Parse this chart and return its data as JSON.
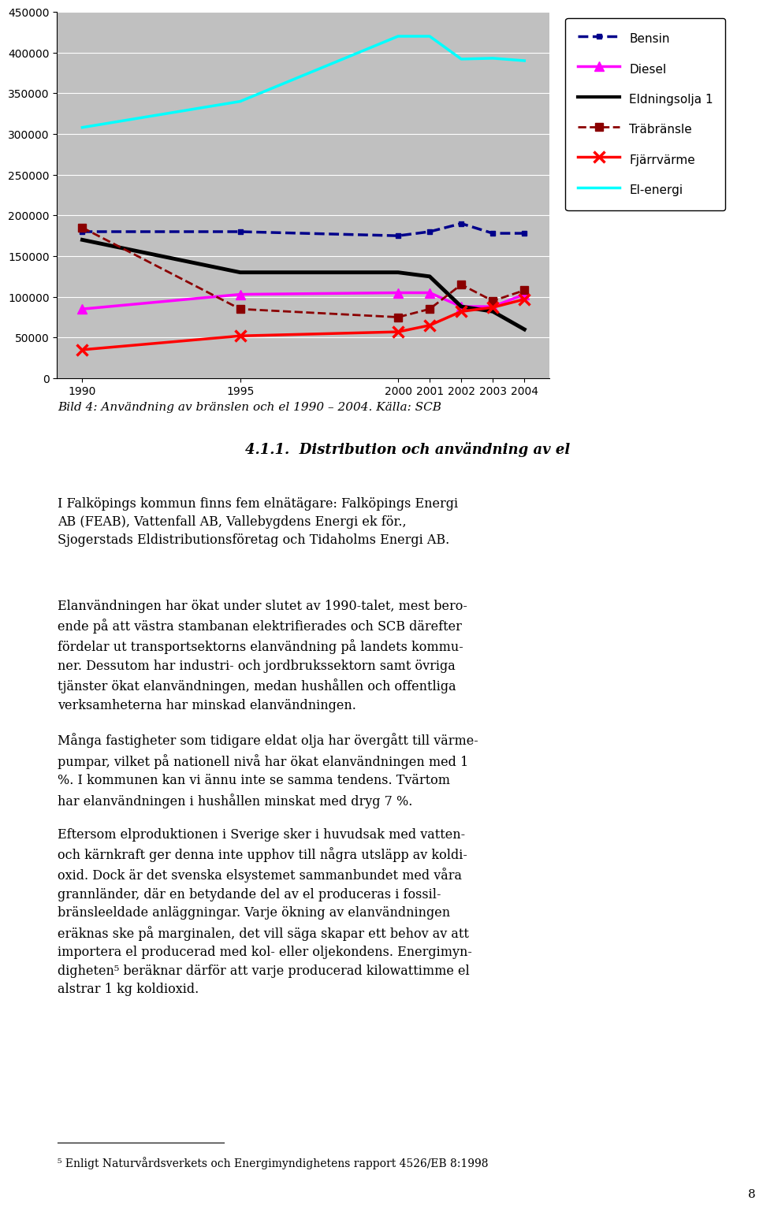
{
  "years": [
    1990,
    1995,
    2000,
    2001,
    2002,
    2003,
    2004
  ],
  "bensin": [
    180000,
    180000,
    175000,
    180000,
    190000,
    178000,
    178000
  ],
  "diesel": [
    85000,
    103000,
    105000,
    105000,
    88000,
    88000,
    103000
  ],
  "eldningsolja": [
    170000,
    130000,
    130000,
    125000,
    88000,
    82000,
    60000
  ],
  "trabransle": [
    185000,
    85000,
    75000,
    85000,
    115000,
    95000,
    108000
  ],
  "fjarrvärme": [
    35000,
    52000,
    57000,
    65000,
    82000,
    87000,
    97000
  ],
  "el_energi": [
    308000,
    340000,
    420000,
    420000,
    392000,
    393000,
    390000
  ],
  "bensin_color": "#00008B",
  "diesel_color": "#FF00FF",
  "eldningsolja_color": "#000000",
  "trabransle_color": "#8B0000",
  "fjarrvärme_color": "#FF0000",
  "el_energi_color": "#00FFFF",
  "chart_bg": "#C0C0C0",
  "ylim": [
    0,
    450000
  ],
  "yticks": [
    0,
    50000,
    100000,
    150000,
    200000,
    250000,
    300000,
    350000,
    400000,
    450000
  ],
  "legend_labels": [
    "Bensin",
    "Diesel",
    "Eldningsolja 1",
    "Träbränsle",
    "Fjärrvärme",
    "El-energi"
  ],
  "caption": "Bild 4: Användning av bränslen och el 1990 – 2004. Källa: SCB",
  "section_title": "4.1.1.  Distribution och användning av el",
  "para1": "I Falköpings kommun finns fem elnätägare: Falköpings Energi\nAB (FEAB), Vattenfall AB, Vallebygdens Energi ek för.,\nSjogerstads Eldistributionsföretag och Tidaholms Energi AB.",
  "para2": "Elanvändningen har ökat under slutet av 1990-talet, mest bero-\nende på att västra stambanan elektrifierades och SCB därefter\nfördelar ut transportsektorns elanvändning på landets kommu-\nner. Dessutom har industri- och jordbrukssektorn samt övriga\ntjänster ökat elanvändningen, medan hushållen och offentliga\nverksamheterna har minskad elanvändningen.",
  "para3": "Många fastigheter som tidigare eldat olja har övergått till värme-\npumpar, vilket på nationell nivå har ökat elanvändningen med 1\n%. I kommunen kan vi ännu inte se samma tendens. Tvärtom\nhar elanvändningen i hushållen minskat med dryg 7 %.",
  "para4": "Eftersom elproduktionen i Sverige sker i huvudsak med vatten-\noch kärnkraft ger denna inte upphov till några utsläpp av koldi-\noxid. Dock är det svenska elsystemet sammanbundet med våra\ngrannländer, där en betydande del av el produceras i fossil-\nbränsleeldade anläggningar. Varje ökning av elanvändningen\neräknas ske på marginalen, det vill säga skapar ett behov av att\nimportera el producerad med kol- eller oljekondens. Energimyn-\ndigheten⁵ beräknar därför att varje producerad kilowattimme el\nalstrar 1 kg koldioxid.",
  "footnote": "⁵ Enligt Naturvårdsverkets och Energimyndighetens rapport 4526/EB 8:1998",
  "page_num": "8"
}
